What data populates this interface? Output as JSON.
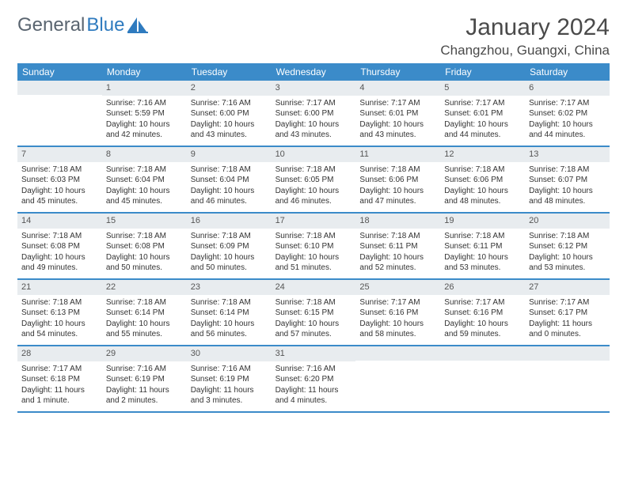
{
  "logo": {
    "text1": "General",
    "text2": "Blue"
  },
  "title": "January 2024",
  "location": "Changzhou, Guangxi, China",
  "colors": {
    "header_bg": "#3b8bc9",
    "header_text": "#ffffff",
    "daynum_bg": "#e8ecef",
    "border": "#3b8bc9",
    "body_text": "#333333",
    "title_text": "#4a4a4a",
    "logo_gray": "#5a6570",
    "logo_blue": "#2f7bbf"
  },
  "weekdays": [
    "Sunday",
    "Monday",
    "Tuesday",
    "Wednesday",
    "Thursday",
    "Friday",
    "Saturday"
  ],
  "weeks": [
    [
      {
        "n": "",
        "sunrise": "",
        "sunset": "",
        "daylight": ""
      },
      {
        "n": "1",
        "sunrise": "Sunrise: 7:16 AM",
        "sunset": "Sunset: 5:59 PM",
        "daylight": "Daylight: 10 hours and 42 minutes."
      },
      {
        "n": "2",
        "sunrise": "Sunrise: 7:16 AM",
        "sunset": "Sunset: 6:00 PM",
        "daylight": "Daylight: 10 hours and 43 minutes."
      },
      {
        "n": "3",
        "sunrise": "Sunrise: 7:17 AM",
        "sunset": "Sunset: 6:00 PM",
        "daylight": "Daylight: 10 hours and 43 minutes."
      },
      {
        "n": "4",
        "sunrise": "Sunrise: 7:17 AM",
        "sunset": "Sunset: 6:01 PM",
        "daylight": "Daylight: 10 hours and 43 minutes."
      },
      {
        "n": "5",
        "sunrise": "Sunrise: 7:17 AM",
        "sunset": "Sunset: 6:01 PM",
        "daylight": "Daylight: 10 hours and 44 minutes."
      },
      {
        "n": "6",
        "sunrise": "Sunrise: 7:17 AM",
        "sunset": "Sunset: 6:02 PM",
        "daylight": "Daylight: 10 hours and 44 minutes."
      }
    ],
    [
      {
        "n": "7",
        "sunrise": "Sunrise: 7:18 AM",
        "sunset": "Sunset: 6:03 PM",
        "daylight": "Daylight: 10 hours and 45 minutes."
      },
      {
        "n": "8",
        "sunrise": "Sunrise: 7:18 AM",
        "sunset": "Sunset: 6:04 PM",
        "daylight": "Daylight: 10 hours and 45 minutes."
      },
      {
        "n": "9",
        "sunrise": "Sunrise: 7:18 AM",
        "sunset": "Sunset: 6:04 PM",
        "daylight": "Daylight: 10 hours and 46 minutes."
      },
      {
        "n": "10",
        "sunrise": "Sunrise: 7:18 AM",
        "sunset": "Sunset: 6:05 PM",
        "daylight": "Daylight: 10 hours and 46 minutes."
      },
      {
        "n": "11",
        "sunrise": "Sunrise: 7:18 AM",
        "sunset": "Sunset: 6:06 PM",
        "daylight": "Daylight: 10 hours and 47 minutes."
      },
      {
        "n": "12",
        "sunrise": "Sunrise: 7:18 AM",
        "sunset": "Sunset: 6:06 PM",
        "daylight": "Daylight: 10 hours and 48 minutes."
      },
      {
        "n": "13",
        "sunrise": "Sunrise: 7:18 AM",
        "sunset": "Sunset: 6:07 PM",
        "daylight": "Daylight: 10 hours and 48 minutes."
      }
    ],
    [
      {
        "n": "14",
        "sunrise": "Sunrise: 7:18 AM",
        "sunset": "Sunset: 6:08 PM",
        "daylight": "Daylight: 10 hours and 49 minutes."
      },
      {
        "n": "15",
        "sunrise": "Sunrise: 7:18 AM",
        "sunset": "Sunset: 6:08 PM",
        "daylight": "Daylight: 10 hours and 50 minutes."
      },
      {
        "n": "16",
        "sunrise": "Sunrise: 7:18 AM",
        "sunset": "Sunset: 6:09 PM",
        "daylight": "Daylight: 10 hours and 50 minutes."
      },
      {
        "n": "17",
        "sunrise": "Sunrise: 7:18 AM",
        "sunset": "Sunset: 6:10 PM",
        "daylight": "Daylight: 10 hours and 51 minutes."
      },
      {
        "n": "18",
        "sunrise": "Sunrise: 7:18 AM",
        "sunset": "Sunset: 6:11 PM",
        "daylight": "Daylight: 10 hours and 52 minutes."
      },
      {
        "n": "19",
        "sunrise": "Sunrise: 7:18 AM",
        "sunset": "Sunset: 6:11 PM",
        "daylight": "Daylight: 10 hours and 53 minutes."
      },
      {
        "n": "20",
        "sunrise": "Sunrise: 7:18 AM",
        "sunset": "Sunset: 6:12 PM",
        "daylight": "Daylight: 10 hours and 53 minutes."
      }
    ],
    [
      {
        "n": "21",
        "sunrise": "Sunrise: 7:18 AM",
        "sunset": "Sunset: 6:13 PM",
        "daylight": "Daylight: 10 hours and 54 minutes."
      },
      {
        "n": "22",
        "sunrise": "Sunrise: 7:18 AM",
        "sunset": "Sunset: 6:14 PM",
        "daylight": "Daylight: 10 hours and 55 minutes."
      },
      {
        "n": "23",
        "sunrise": "Sunrise: 7:18 AM",
        "sunset": "Sunset: 6:14 PM",
        "daylight": "Daylight: 10 hours and 56 minutes."
      },
      {
        "n": "24",
        "sunrise": "Sunrise: 7:18 AM",
        "sunset": "Sunset: 6:15 PM",
        "daylight": "Daylight: 10 hours and 57 minutes."
      },
      {
        "n": "25",
        "sunrise": "Sunrise: 7:17 AM",
        "sunset": "Sunset: 6:16 PM",
        "daylight": "Daylight: 10 hours and 58 minutes."
      },
      {
        "n": "26",
        "sunrise": "Sunrise: 7:17 AM",
        "sunset": "Sunset: 6:16 PM",
        "daylight": "Daylight: 10 hours and 59 minutes."
      },
      {
        "n": "27",
        "sunrise": "Sunrise: 7:17 AM",
        "sunset": "Sunset: 6:17 PM",
        "daylight": "Daylight: 11 hours and 0 minutes."
      }
    ],
    [
      {
        "n": "28",
        "sunrise": "Sunrise: 7:17 AM",
        "sunset": "Sunset: 6:18 PM",
        "daylight": "Daylight: 11 hours and 1 minute."
      },
      {
        "n": "29",
        "sunrise": "Sunrise: 7:16 AM",
        "sunset": "Sunset: 6:19 PM",
        "daylight": "Daylight: 11 hours and 2 minutes."
      },
      {
        "n": "30",
        "sunrise": "Sunrise: 7:16 AM",
        "sunset": "Sunset: 6:19 PM",
        "daylight": "Daylight: 11 hours and 3 minutes."
      },
      {
        "n": "31",
        "sunrise": "Sunrise: 7:16 AM",
        "sunset": "Sunset: 6:20 PM",
        "daylight": "Daylight: 11 hours and 4 minutes."
      },
      {
        "n": "",
        "sunrise": "",
        "sunset": "",
        "daylight": ""
      },
      {
        "n": "",
        "sunrise": "",
        "sunset": "",
        "daylight": ""
      },
      {
        "n": "",
        "sunrise": "",
        "sunset": "",
        "daylight": ""
      }
    ]
  ]
}
